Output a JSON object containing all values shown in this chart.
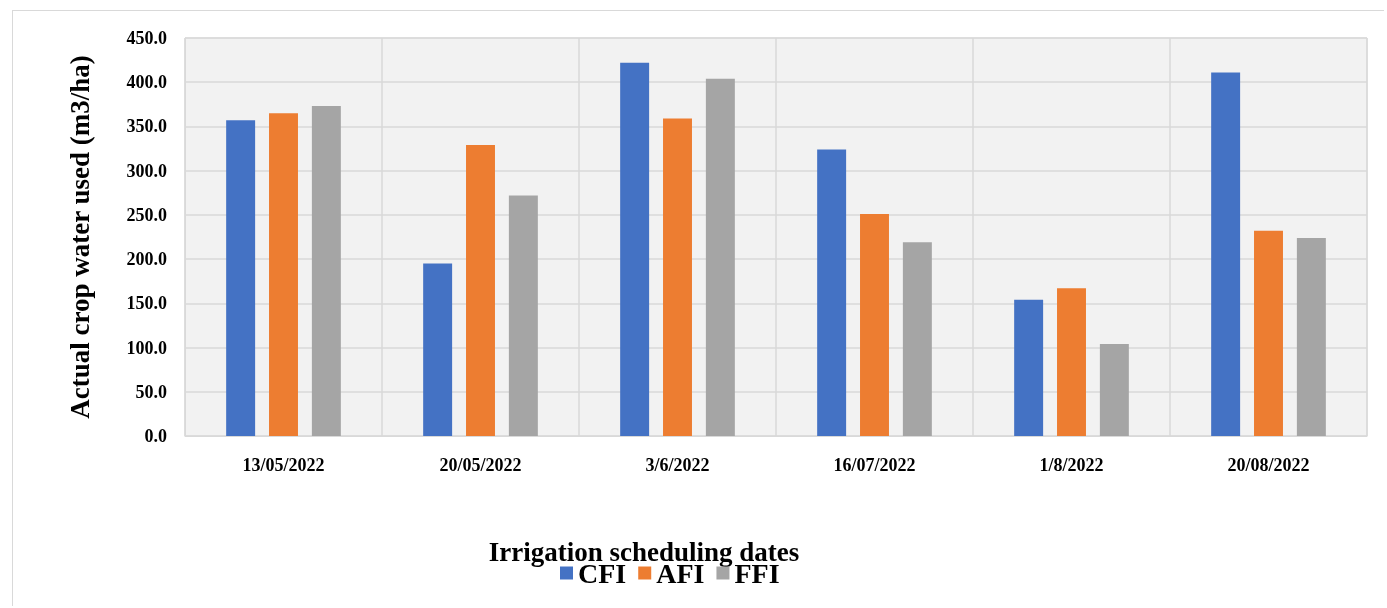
{
  "chart_data": {
    "type": "bar",
    "xlabel": "Irrigation scheduling dates",
    "ylabel": "Actual crop water used (m3/ha)",
    "categories": [
      "13/05/2022",
      "20/05/2022",
      "3/6/2022",
      "16/07/2022",
      "1/8/2022",
      "20/08/2022"
    ],
    "series": [
      {
        "name": "CFI",
        "color": "#4472c4",
        "values": [
          357,
          195,
          422,
          324,
          154,
          411
        ]
      },
      {
        "name": "AFI",
        "color": "#ed7d31",
        "values": [
          365,
          329,
          359,
          251,
          167,
          232
        ]
      },
      {
        "name": "FFI",
        "color": "#a5a5a5",
        "values": [
          373,
          272,
          404,
          219,
          104,
          224
        ]
      }
    ],
    "ylim": [
      0,
      450
    ],
    "yticks": [
      {
        "value": 0,
        "label": "0.0"
      },
      {
        "value": 50,
        "label": "50.0"
      },
      {
        "value": 100,
        "label": "100.0"
      },
      {
        "value": 150,
        "label": "150.0"
      },
      {
        "value": 200,
        "label": "200.0"
      },
      {
        "value": 250,
        "label": "250.0"
      },
      {
        "value": 300,
        "label": "300.0"
      },
      {
        "value": 350,
        "label": "350.0"
      },
      {
        "value": 400,
        "label": "400.0"
      },
      {
        "value": 450,
        "label": "450.0"
      }
    ],
    "grid": true,
    "legend": "bottom"
  }
}
